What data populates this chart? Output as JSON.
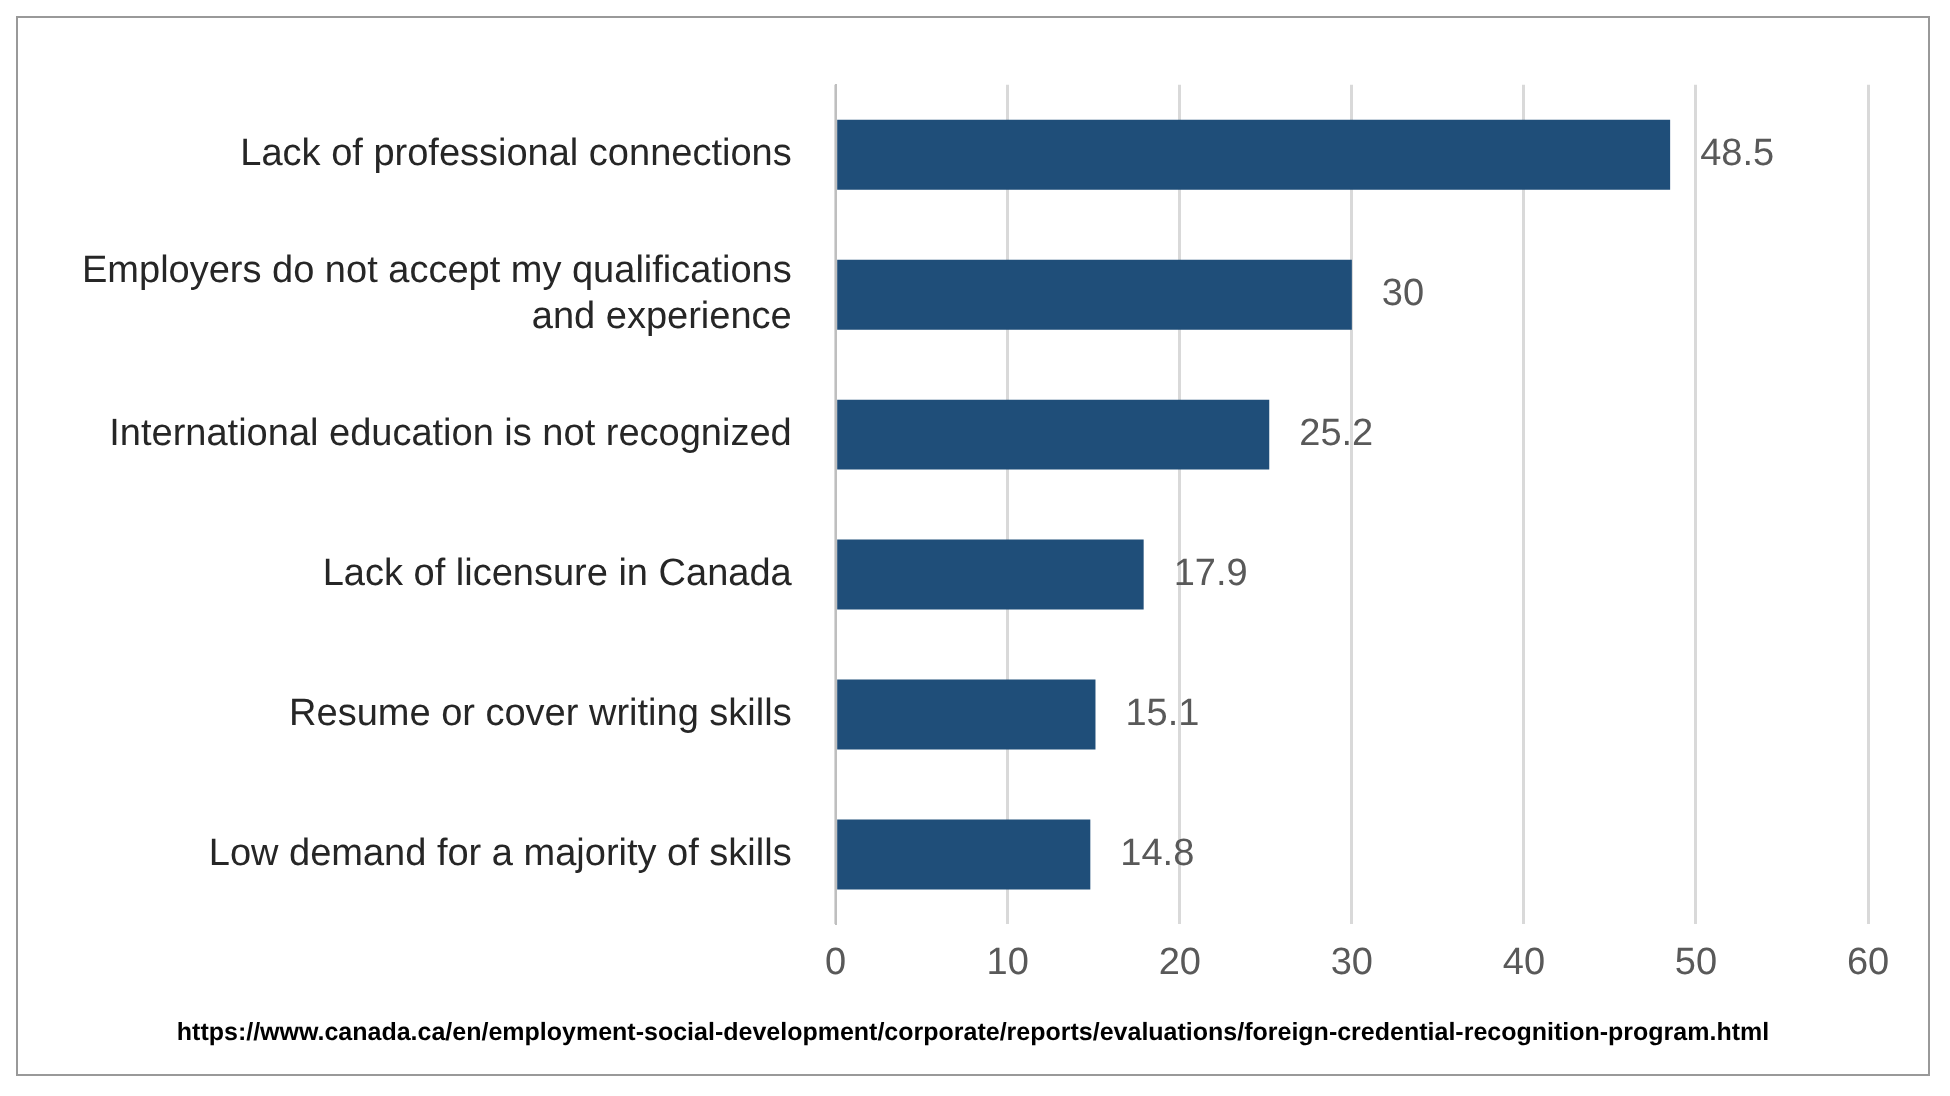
{
  "chart_data": {
    "type": "bar",
    "orientation": "horizontal",
    "categories": [
      "Lack of professional connections",
      "Employers do not accept my qualifications and experience",
      "International education is not recognized",
      "Lack of licensure in Canada",
      "Resume or cover writing skills",
      "Low demand for a majority of skills"
    ],
    "values": [
      48.5,
      30,
      25.2,
      17.9,
      15.1,
      14.8
    ],
    "color": "#1f4e79",
    "xlim": [
      0,
      60
    ],
    "xticks": [
      0,
      10,
      20,
      30,
      40,
      50,
      60
    ],
    "grid": "x",
    "data_labels": true,
    "annotations": [
      "https://www.canada.ca/en/employment-social-development/corporate/reports/evaluations/foreign-credential-recognition-program.html"
    ]
  }
}
